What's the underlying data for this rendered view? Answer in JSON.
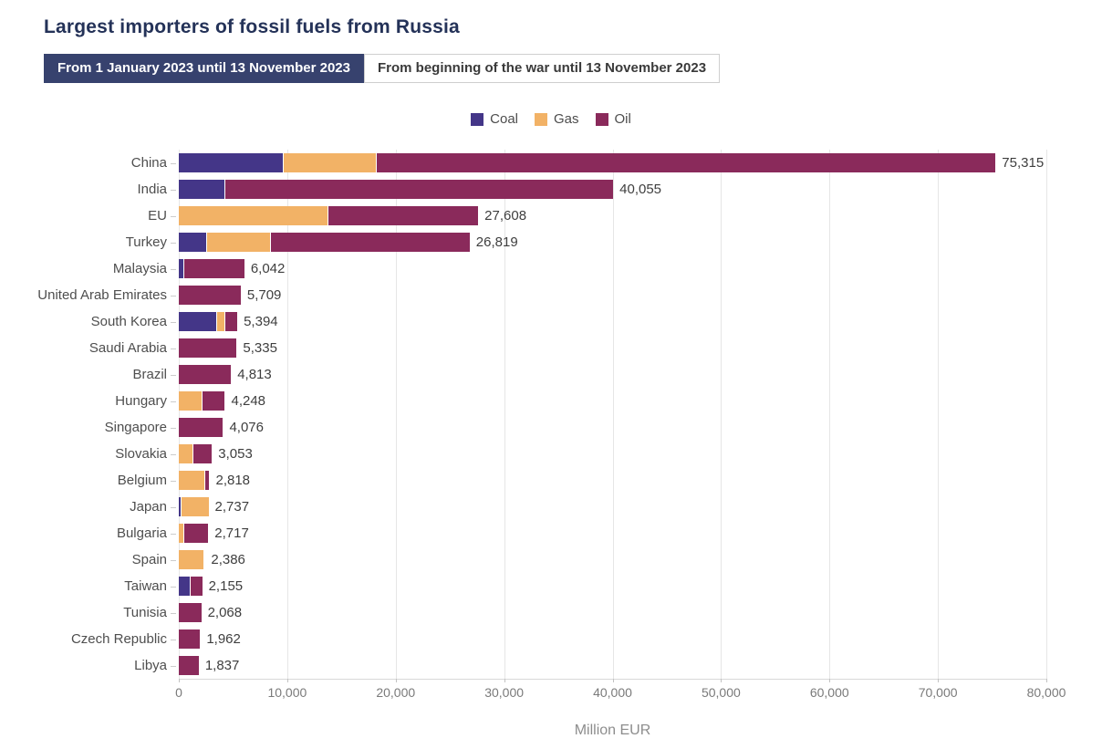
{
  "page": {
    "title": "Largest importers of fossil fuels from Russia"
  },
  "tabs": [
    {
      "label": "From 1 January 2023 until 13 November 2023",
      "active": true
    },
    {
      "label": "From beginning of the war until 13 November 2023",
      "active": false
    }
  ],
  "colors": {
    "coal": "#443688",
    "gas": "#F2B266",
    "oil": "#8A2A5B",
    "active_tab_bg": "#37426e",
    "title_text": "#243258"
  },
  "chart_data": {
    "type": "bar",
    "orientation": "horizontal",
    "stacked": true,
    "grid": "vertical",
    "legend_position": "top-center",
    "xlabel": "Million EUR",
    "xlim": [
      0,
      80000
    ],
    "x_ticks": [
      0,
      10000,
      20000,
      30000,
      40000,
      50000,
      60000,
      70000,
      80000
    ],
    "x_tick_labels": [
      "0",
      "10,000",
      "20,000",
      "30,000",
      "40,000",
      "50,000",
      "60,000",
      "70,000",
      "80,000"
    ],
    "categories": [
      "China",
      "India",
      "EU",
      "Turkey",
      "Malaysia",
      "United Arab Emirates",
      "South Korea",
      "Saudi Arabia",
      "Brazil",
      "Hungary",
      "Singapore",
      "Slovakia",
      "Belgium",
      "Japan",
      "Bulgaria",
      "Spain",
      "Taiwan",
      "Tunisia",
      "Czech Republic",
      "Libya"
    ],
    "series": [
      {
        "name": "Coal",
        "color": "#443688",
        "values": [
          9600,
          4200,
          0,
          2500,
          400,
          0,
          3480,
          0,
          0,
          0,
          0,
          0,
          0,
          170,
          0,
          0,
          1000,
          0,
          0,
          0
        ]
      },
      {
        "name": "Gas",
        "color": "#F2B266",
        "values": [
          8600,
          0,
          13700,
          5900,
          0,
          0,
          740,
          0,
          0,
          2080,
          0,
          1250,
          2380,
          2567,
          450,
          2290,
          0,
          0,
          0,
          0
        ]
      },
      {
        "name": "Oil",
        "color": "#8A2A5B",
        "values": [
          57115,
          35855,
          13908,
          18419,
          5642,
          5709,
          1174,
          5335,
          4813,
          2168,
          4076,
          1803,
          438,
          0,
          2267,
          96,
          1155,
          2068,
          1962,
          1837
        ]
      }
    ],
    "totals": [
      75315,
      40055,
      27608,
      26819,
      6042,
      5709,
      5394,
      5335,
      4813,
      4248,
      4076,
      3053,
      2818,
      2737,
      2717,
      2386,
      2155,
      2068,
      1962,
      1837
    ],
    "total_labels": [
      "75,315",
      "40,055",
      "27,608",
      "26,819",
      "6,042",
      "5,709",
      "5,394",
      "5,335",
      "4,813",
      "4,248",
      "4,076",
      "3,053",
      "2,818",
      "2,737",
      "2,717",
      "2,386",
      "2,155",
      "2,068",
      "1,962",
      "1,837"
    ]
  }
}
